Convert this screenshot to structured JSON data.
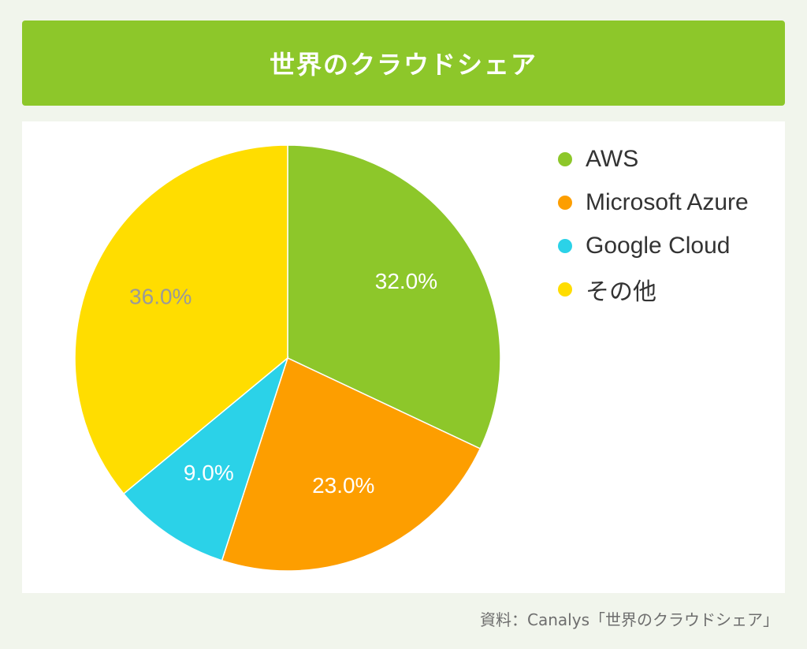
{
  "header": {
    "title": "世界のクラウドシェア"
  },
  "source": "資料：Canalys「世界のクラウドシェア」",
  "chart_data": {
    "type": "pie",
    "categories": [
      "AWS",
      "Microsoft Azure",
      "Google Cloud",
      "その他"
    ],
    "values": [
      32.0,
      23.0,
      9.0,
      36.0
    ],
    "labels": [
      "32.0%",
      "23.0%",
      "9.0%",
      "36.0%"
    ],
    "colors": [
      "#8dc72a",
      "#fd9e00",
      "#2bd2e8",
      "#ffdd00"
    ],
    "label_colors": [
      "#ffffff",
      "#ffffff",
      "#ffffff",
      "#9a9a9a"
    ],
    "unit": "%",
    "start_angle_deg": 0,
    "direction": "clockwise",
    "legend_position": "right"
  }
}
